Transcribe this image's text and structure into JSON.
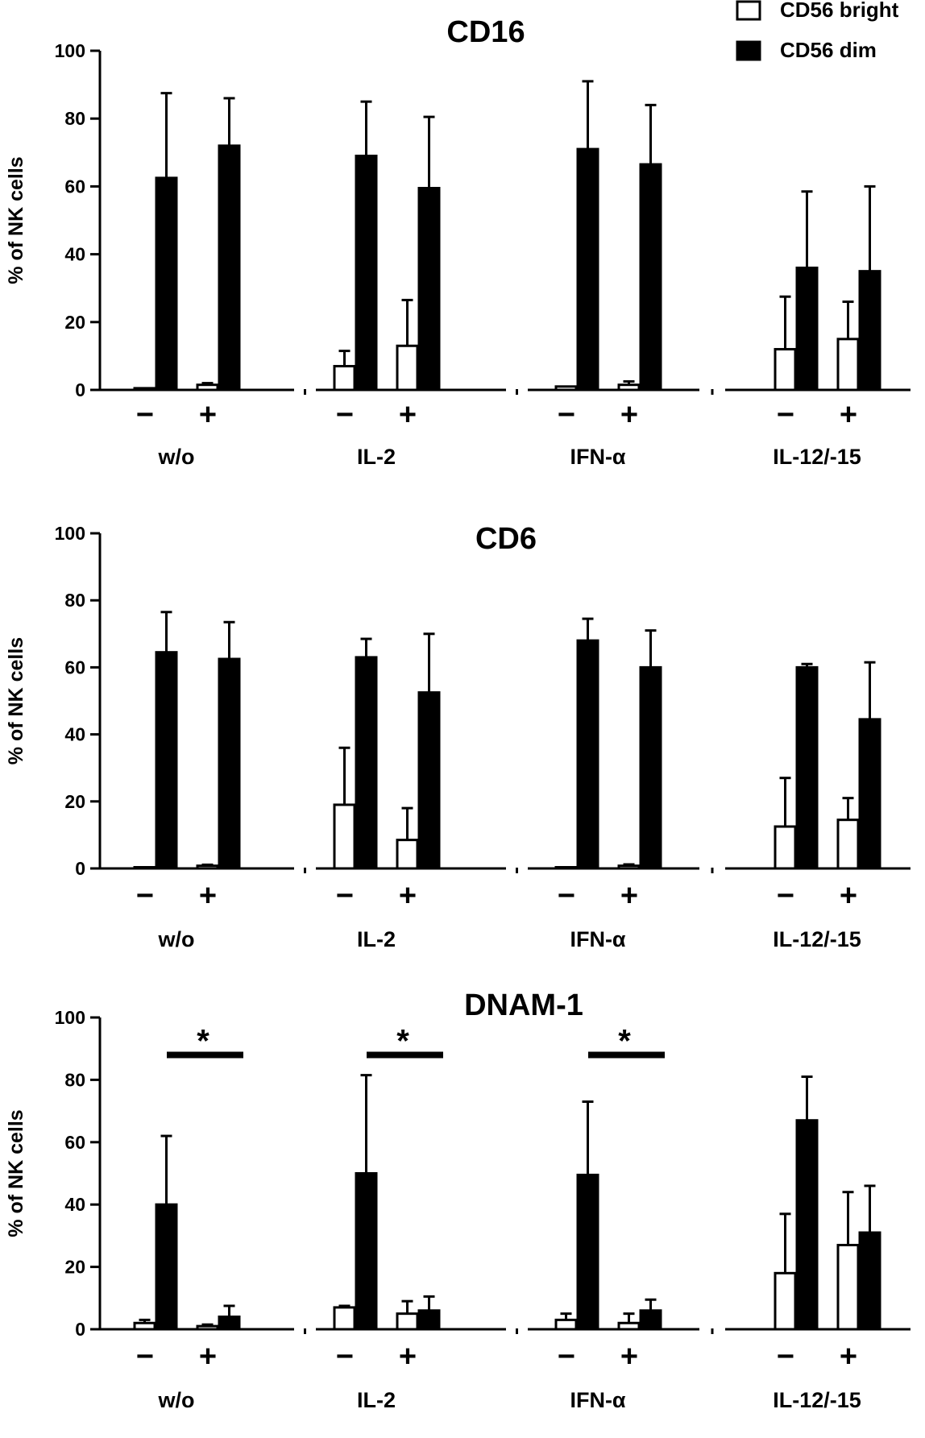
{
  "chart_data": [
    {
      "type": "bar",
      "title": "CD16",
      "ylabel": "% of NK cells",
      "xlabel": "",
      "ylim": [
        0,
        100
      ],
      "yticks": [
        0,
        20,
        40,
        60,
        80,
        100
      ],
      "groups": [
        "w/o",
        "IL-2",
        "IFN-α",
        "IL-12/-15"
      ],
      "conditions": [
        "−",
        "+"
      ],
      "series": [
        {
          "name": "CD56 bright",
          "values": [
            [
              0.5,
              1.5
            ],
            [
              7,
              13
            ],
            [
              1,
              1.5
            ],
            [
              12,
              15
            ]
          ],
          "errors": [
            [
              0,
              0.5
            ],
            [
              4.5,
              13.5
            ],
            [
              0,
              1
            ],
            [
              15.5,
              11
            ]
          ]
        },
        {
          "name": "CD56 dim",
          "values": [
            [
              62.5,
              72
            ],
            [
              69,
              59.5
            ],
            [
              71,
              66.5
            ],
            [
              36,
              35
            ]
          ],
          "errors": [
            [
              25,
              14
            ],
            [
              16,
              21
            ],
            [
              20,
              17.5
            ],
            [
              22.5,
              25
            ]
          ]
        }
      ],
      "significance": [],
      "legend": "top-right",
      "grid": false
    },
    {
      "type": "bar",
      "title": "CD6",
      "ylabel": "% of NK cells",
      "xlabel": "",
      "ylim": [
        0,
        100
      ],
      "yticks": [
        0,
        20,
        40,
        60,
        80,
        100
      ],
      "groups": [
        "w/o",
        "IL-2",
        "IFN-α",
        "IL-12/-15"
      ],
      "conditions": [
        "−",
        "+"
      ],
      "series": [
        {
          "name": "CD56 bright",
          "values": [
            [
              0.3,
              0.8
            ],
            [
              19,
              8.5
            ],
            [
              0.3,
              0.8
            ],
            [
              12.5,
              14.5
            ]
          ],
          "errors": [
            [
              0,
              0.3
            ],
            [
              17,
              9.5
            ],
            [
              0,
              0.4
            ],
            [
              14.5,
              6.5
            ]
          ]
        },
        {
          "name": "CD56 dim",
          "values": [
            [
              64.5,
              62.5
            ],
            [
              63,
              52.5
            ],
            [
              68,
              60
            ],
            [
              60,
              44.5
            ]
          ],
          "errors": [
            [
              12,
              11
            ],
            [
              5.5,
              17.5
            ],
            [
              6.5,
              11
            ],
            [
              1,
              17
            ]
          ]
        }
      ],
      "significance": [],
      "legend": "none",
      "grid": false
    },
    {
      "type": "bar",
      "title": "DNAM-1",
      "ylabel": "% of NK cells",
      "xlabel": "",
      "ylim": [
        0,
        100
      ],
      "yticks": [
        0,
        20,
        40,
        60,
        80,
        100
      ],
      "groups": [
        "w/o",
        "IL-2",
        "IFN-α",
        "IL-12/-15"
      ],
      "conditions": [
        "−",
        "+"
      ],
      "series": [
        {
          "name": "CD56 bright",
          "values": [
            [
              2,
              1
            ],
            [
              7,
              5
            ],
            [
              3,
              2
            ],
            [
              18,
              27
            ]
          ],
          "errors": [
            [
              1,
              0.5
            ],
            [
              0.5,
              4
            ],
            [
              2,
              3
            ],
            [
              19,
              17
            ]
          ]
        },
        {
          "name": "CD56 dim",
          "values": [
            [
              40,
              4
            ],
            [
              50,
              6
            ],
            [
              49.5,
              6
            ],
            [
              67,
              31
            ]
          ],
          "errors": [
            [
              22,
              3.5
            ],
            [
              31.5,
              4.5
            ],
            [
              23.5,
              3.5
            ],
            [
              14,
              15
            ]
          ]
        }
      ],
      "significance": [
        {
          "group": 0,
          "label": "*",
          "y": 88
        },
        {
          "group": 1,
          "label": "*",
          "y": 88
        },
        {
          "group": 2,
          "label": "*",
          "y": 88
        }
      ],
      "legend": "none",
      "grid": false
    }
  ]
}
